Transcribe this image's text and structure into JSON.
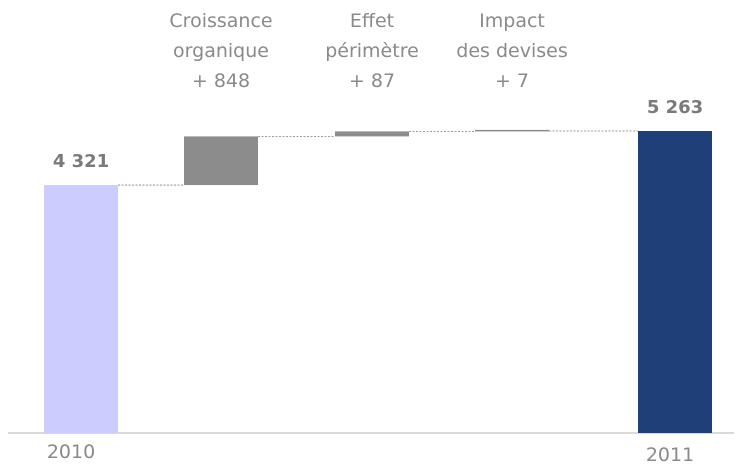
{
  "chart_data": {
    "type": "waterfall",
    "unit": "",
    "bars": [
      {
        "kind": "total",
        "category": "2010",
        "value": 4321,
        "label": "4 321",
        "color": "#ccccff"
      },
      {
        "kind": "delta",
        "label_lines": [
          "Croissance",
          "organique",
          "+ 848"
        ],
        "value": 848,
        "color": "#8c8c8c"
      },
      {
        "kind": "delta",
        "label_lines": [
          "Effet",
          "périmètre",
          "+ 87"
        ],
        "value": 87,
        "color": "#8c8c8c"
      },
      {
        "kind": "delta",
        "label_lines": [
          "Impact",
          "des devises",
          "+ 7"
        ],
        "value": 7,
        "color": "#8c8c8c"
      },
      {
        "kind": "total",
        "category": "2011",
        "value": 5263,
        "label": "5 263",
        "color": "#1f3f78"
      }
    ],
    "connectors": true,
    "axis": {
      "baseline": 0,
      "max": 5263,
      "show_gridlines": false
    },
    "colors": {
      "baseline_axis": "#d9d9d9",
      "connector": "#7f7f7f",
      "label": "#8a8a8a"
    }
  }
}
